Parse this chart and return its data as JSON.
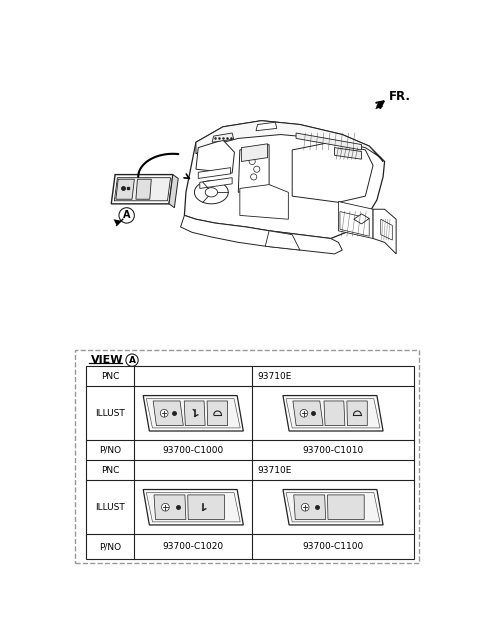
{
  "bg_color": "#ffffff",
  "fr_label": "FR.",
  "line_color": "#222222",
  "dash_color": "#999999",
  "table": {
    "pnc1": "93710E",
    "pnc2": "93710E",
    "pno_row1_left": "93700-C1000",
    "pno_row1_right": "93700-C1010",
    "pno_row2_left": "93700-C1020",
    "pno_row2_right": "93700-C1100",
    "label_pnc": "PNC",
    "label_illust": "ILLUST",
    "label_pno": "P/NO",
    "view_label": "VIEW"
  },
  "font_size_small": 6.5,
  "font_size_label": 6.5,
  "font_size_fr": 8.5
}
